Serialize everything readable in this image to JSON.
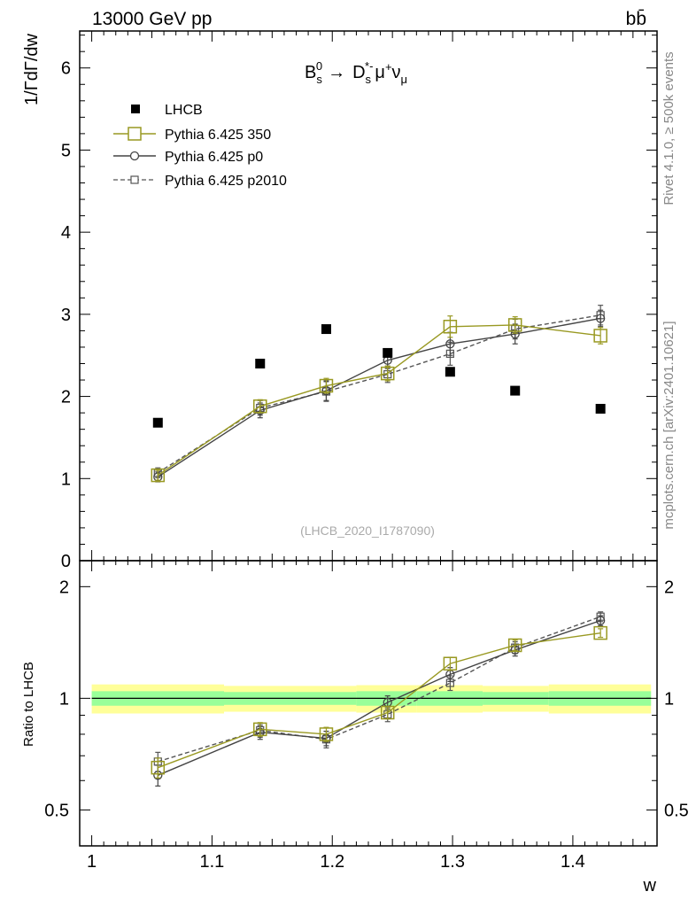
{
  "header": {
    "left_title": "13000 GeV pp",
    "right_title": "bb̄"
  },
  "side_labels": {
    "rivet": "Rivet 4.1.0, ≥ 500k events",
    "mcplots": "mcplots.cern.ch [arXiv:2401.10621]"
  },
  "chart_data": {
    "type": "scatter",
    "title": "B_s^0 → D_s^{*-} μ^+ ν_μ",
    "process_parts": [
      "B",
      "s",
      "0",
      "→",
      "D",
      "s",
      "*-",
      "μ",
      "+",
      "ν",
      "μ"
    ],
    "analysis_id": "(LHCB_2020_I1787090)",
    "xlabel": "w",
    "ylabel_main": "1/ΓdΓ/dw",
    "ylabel_ratio": "Ratio to LHCB",
    "xlim": [
      0.99,
      1.47
    ],
    "ylim_main": [
      0,
      6.45
    ],
    "ylim_ratio": [
      0.4,
      2.35
    ],
    "x_ticks": [
      1,
      1.1,
      1.2,
      1.3,
      1.4
    ],
    "x_tick_labels": [
      "1",
      "1.1",
      "1.2",
      "1.3",
      "1.4"
    ],
    "y_ticks_main": [
      0,
      1,
      2,
      3,
      4,
      5,
      6
    ],
    "y_tick_labels_main": [
      "0",
      "1",
      "2",
      "3",
      "4",
      "5",
      "6"
    ],
    "y_ticks_ratio": [
      0.5,
      1,
      2
    ],
    "y_tick_labels_ratio": [
      "0.5",
      "1",
      "2"
    ],
    "x": [
      1.055,
      1.14,
      1.195,
      1.246,
      1.298,
      1.352,
      1.423
    ],
    "bin_edges": [
      1.0,
      1.11,
      1.17,
      1.22,
      1.27,
      1.325,
      1.38,
      1.465
    ],
    "band_inner_half": [
      0.045,
      0.04,
      0.04,
      0.045,
      0.045,
      0.04,
      0.045
    ],
    "band_outer_half": [
      0.09,
      0.08,
      0.08,
      0.085,
      0.085,
      0.08,
      0.09
    ],
    "series": [
      {
        "name": "LHCB",
        "style": "data",
        "color": "#000000",
        "values": [
          1.68,
          2.4,
          2.82,
          2.53,
          2.3,
          2.07,
          1.85
        ]
      },
      {
        "name": "Pythia 6.425 350",
        "style": "square",
        "color": "#999922",
        "values": [
          1.04,
          1.88,
          2.13,
          2.28,
          2.85,
          2.87,
          2.74
        ],
        "errors": [
          0.06,
          0.08,
          0.09,
          0.09,
          0.13,
          0.1,
          0.1
        ],
        "ratio": [
          0.65,
          0.825,
          0.8,
          0.915,
          1.24,
          1.39,
          1.5
        ],
        "ratio_errors": [
          0.04,
          0.035,
          0.035,
          0.035,
          0.05,
          0.045,
          0.04
        ]
      },
      {
        "name": "Pythia 6.425 p0",
        "style": "circle",
        "color": "#444444",
        "values": [
          1.02,
          1.83,
          2.07,
          2.44,
          2.64,
          2.76,
          2.95
        ],
        "errors": [
          0.06,
          0.09,
          0.12,
          0.1,
          0.14,
          0.12,
          0.1
        ],
        "ratio": [
          0.62,
          0.81,
          0.78,
          0.975,
          1.16,
          1.35,
          1.62
        ],
        "ratio_errors": [
          0.04,
          0.035,
          0.035,
          0.04,
          0.05,
          0.05,
          0.05
        ]
      },
      {
        "name": "Pythia 6.425 p2010",
        "style": "smallsquare",
        "color": "#555555",
        "values": [
          1.07,
          1.86,
          2.06,
          2.27,
          2.52,
          2.82,
          2.99
        ],
        "errors": [
          0.06,
          0.09,
          0.12,
          0.1,
          0.14,
          0.12,
          0.12
        ],
        "ratio": [
          0.675,
          0.82,
          0.775,
          0.905,
          1.1,
          1.37,
          1.66
        ],
        "ratio_errors": [
          0.04,
          0.035,
          0.04,
          0.04,
          0.05,
          0.05,
          0.05
        ]
      }
    ],
    "band_colors": {
      "inner": "#99ff99",
      "outer": "#ffff99"
    }
  }
}
